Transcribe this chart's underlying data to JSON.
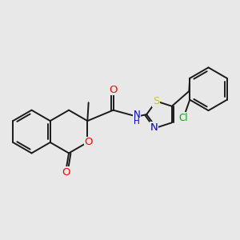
{
  "background_color": "#e8e8e8",
  "bond_color": "#1a1a1a",
  "atom_colors": {
    "O": "#ff0000",
    "N": "#0000cc",
    "S": "#cccc00",
    "Cl": "#00aa00",
    "C": "#1a1a1a",
    "H": "#0000cc"
  },
  "lw": 1.4,
  "fs": 8.5
}
